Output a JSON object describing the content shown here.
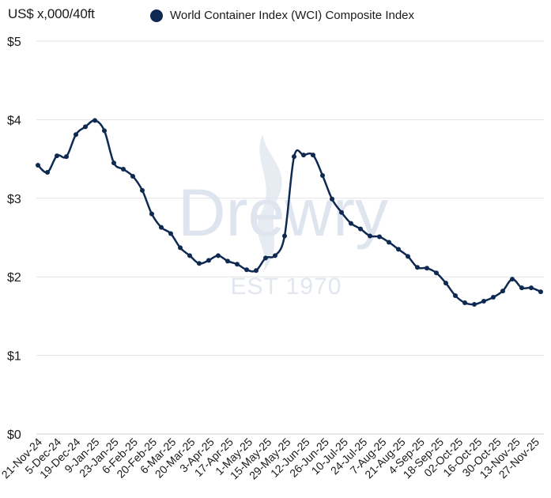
{
  "chart_data": {
    "type": "line",
    "title": "",
    "ylabel": "US$ x,000/40ft",
    "xlabel": "",
    "ylim": [
      0,
      5
    ],
    "yticks": [
      0,
      1,
      2,
      3,
      4,
      5
    ],
    "ytick_labels": [
      "$0",
      "$1",
      "$2",
      "$3",
      "$4",
      "$5"
    ],
    "grid": "horizontal",
    "legend_position": "top",
    "series": [
      {
        "name": "World Container Index (WCI) Composite Index",
        "color": "#0f2a52",
        "values": [
          3.42,
          3.33,
          3.54,
          3.53,
          3.81,
          3.91,
          3.99,
          3.86,
          3.45,
          3.37,
          3.28,
          3.1,
          2.8,
          2.63,
          2.55,
          2.37,
          2.27,
          2.17,
          2.21,
          2.27,
          2.2,
          2.16,
          2.09,
          2.08,
          2.24,
          2.27,
          2.52,
          3.53,
          3.55,
          3.55,
          3.29,
          2.99,
          2.82,
          2.68,
          2.61,
          2.52,
          2.51,
          2.44,
          2.35,
          2.26,
          2.12,
          2.11,
          2.05,
          1.92,
          1.76,
          1.67,
          1.65,
          1.69,
          1.74,
          1.82,
          1.97,
          1.86,
          1.86,
          1.81
        ]
      }
    ],
    "x_tick_labels": [
      "21-Nov-24",
      "5-Dec-24",
      "19-Dec-24",
      "9-Jan-25",
      "23-Jan-25",
      "6-Feb-25",
      "20-Feb-25",
      "6-Mar-25",
      "20-Mar-25",
      "3-Apr-25",
      "17-Apr-25",
      "1-May-25",
      "15-May-25",
      "29-May-25",
      "12-Jun-25",
      "26-Jun-25",
      "10-Jul-25",
      "24-Jul-25",
      "7-Aug-25",
      "21-Aug-25",
      "4-Sep-25",
      "18-Sep-25",
      "02-Oct-25",
      "16-Oct-25",
      "30-Oct-25",
      "13-Nov-25",
      "27-Nov-25"
    ],
    "watermark": "Drewry",
    "watermark_sub": "EST 1970"
  }
}
